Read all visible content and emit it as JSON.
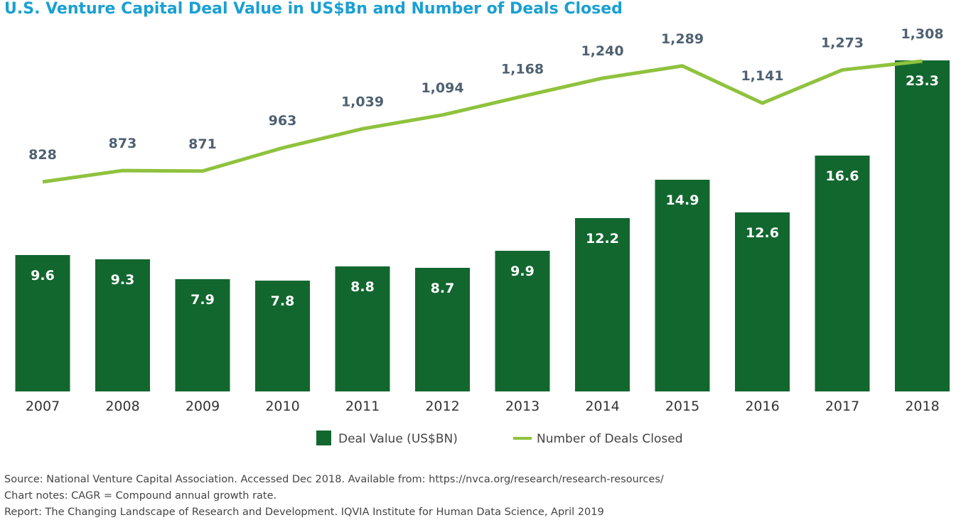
{
  "title": "U.S. Venture Capital Deal Value in US$Bn and Number of Deals Closed",
  "colors": {
    "bar": "#12672f",
    "line": "#8fc23e",
    "title": "#1aa0d2",
    "line_label": "#4f6172"
  },
  "chart_data": {
    "type": "bar",
    "categories": [
      "2007",
      "2008",
      "2009",
      "2010",
      "2011",
      "2012",
      "2013",
      "2014",
      "2015",
      "2016",
      "2017",
      "2018"
    ],
    "series": [
      {
        "name": "Deal Value (US$BN)",
        "type": "bar",
        "values": [
          9.6,
          9.3,
          7.9,
          7.8,
          8.8,
          8.7,
          9.9,
          12.2,
          14.9,
          12.6,
          16.6,
          23.3
        ],
        "labels": [
          "9.6",
          "9.3",
          "7.9",
          "7.8",
          "8.8",
          "8.7",
          "9.9",
          "12.2",
          "14.9",
          "12.6",
          "16.6",
          "23.3"
        ]
      },
      {
        "name": "Number of Deals Closed",
        "type": "line",
        "values": [
          828,
          873,
          871,
          963,
          1039,
          1094,
          1168,
          1240,
          1289,
          1141,
          1273,
          1308
        ],
        "labels": [
          "828",
          "873",
          "871",
          "963",
          "1,039",
          "1,094",
          "1,168",
          "1,240",
          "1,289",
          "1,141",
          "1,273",
          "1,308"
        ]
      }
    ],
    "legend": "bottom-center",
    "grid": false
  },
  "footer": {
    "source": "Source: National Venture Capital Association. Accessed Dec 2018. Available from: https://nvca.org/research/research-resources/",
    "notes": "Chart notes: CAGR = Compound annual growth rate.",
    "report": "Report: The Changing Landscape of Research and Development. IQVIA Institute for Human Data Science, April 2019"
  }
}
